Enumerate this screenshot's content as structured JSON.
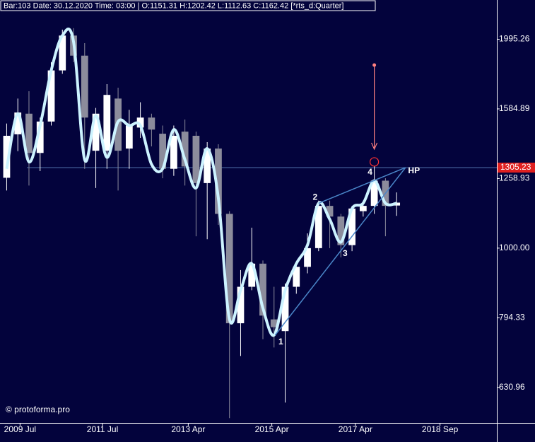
{
  "chart_data": {
    "type": "candlestick",
    "header": "Bar:103 Date: 30.12.2020 Time: 03:00 | O:1151.31 H:1202.42 L:1112.63 C:1162.42 [*rts_d:Quarter]",
    "copyright": "© protoforma.pro",
    "log_scale": true,
    "ylim": [
      561,
      2272
    ],
    "yticks": [
      630.96,
      794.33,
      {
        "value": 1000,
        "label": "1000.00"
      },
      1258.93,
      1584.89,
      1995.26
    ],
    "xlim": [
      -0.6,
      44
    ],
    "xticks": [
      {
        "value": 1.2,
        "label": "2009 Jul"
      },
      {
        "value": 8.6,
        "label": "2011 Jul"
      },
      {
        "value": 16.3,
        "label": "2013 Apr"
      },
      {
        "value": 23.8,
        "label": "2015 Apr"
      },
      {
        "value": 31.3,
        "label": "2017 Apr"
      },
      {
        "value": 38.9,
        "label": "2018 Sep"
      }
    ],
    "up_color": "#ffffff",
    "down_color": "#8c8c9c",
    "background": "#03033c",
    "open": [
      1262,
      1457,
      1560,
      1370,
      1520,
      1800,
      2020,
      1890,
      1380,
      1380,
      1640,
      1390,
      1490,
      1540,
      1460,
      1300,
      1470,
      1450,
      1240,
      1390,
      1120,
      780,
      880,
      950,
      790,
      760,
      880,
      940,
      1000,
      1150,
      1110,
      1010,
      1130,
      1150,
      1250,
      1151.31
    ],
    "high": [
      1510,
      1640,
      1680,
      1540,
      1850,
      2060,
      2070,
      1970,
      1590,
      1720,
      1700,
      1580,
      1620,
      1560,
      1500,
      1500,
      1530,
      1470,
      1420,
      1410,
      1130,
      930,
      1070,
      960,
      880,
      890,
      950,
      1050,
      1170,
      1170,
      1120,
      1150,
      1170,
      1310,
      1260,
      1202.42
    ],
    "low": [
      1210,
      1378,
      1230,
      1290,
      1500,
      1780,
      1850,
      1300,
      1220,
      1300,
      1210,
      1300,
      1440,
      1400,
      1260,
      1270,
      1230,
      1040,
      1030,
      1080,
      570,
      700,
      870,
      740,
      720,
      600,
      860,
      920,
      990,
      1000,
      970,
      990,
      1110,
      1120,
      1040,
      1112.63
    ],
    "close": [
      1450,
      1566,
      1370,
      1520,
      1800,
      2020,
      1890,
      1540,
      1560,
      1660,
      1380,
      1500,
      1540,
      1480,
      1300,
      1450,
      1310,
      1240,
      1390,
      1120,
      780,
      880,
      950,
      800,
      770,
      880,
      940,
      1000,
      1150,
      1110,
      1010,
      1140,
      1150,
      1250,
      1150,
      1162.42
    ],
    "smooth": {
      "color": "#cdf3ff",
      "values": [
        1300,
        1560,
        1330,
        1500,
        1800,
        2020,
        1980,
        1340,
        1550,
        1350,
        1520,
        1500,
        1500,
        1320,
        1300,
        1480,
        1340,
        1220,
        1390,
        1180,
        790,
        870,
        950,
        820,
        750,
        870,
        950,
        1010,
        1160,
        1100,
        1020,
        1140,
        1160,
        1250,
        1160,
        1160
      ]
    },
    "price_line": {
      "value": 1305.23,
      "label": "1305.23",
      "color": "#4f6fa8"
    },
    "pivots": [
      {
        "label": "1",
        "bar": 24.1,
        "value": 750
      },
      {
        "label": "2",
        "bar": 28,
        "value": 1160
      },
      {
        "label": "3",
        "bar": 30,
        "value": 1005
      },
      {
        "label": "4",
        "bar": 33,
        "value": 1260
      },
      {
        "label": "HP",
        "bar": 35.8,
        "value": 1305.23
      }
    ],
    "wedge_color": "#4a86c8",
    "arrow": {
      "bar": 33,
      "from": 1832,
      "to": 1330,
      "color": "#ff8080"
    }
  }
}
